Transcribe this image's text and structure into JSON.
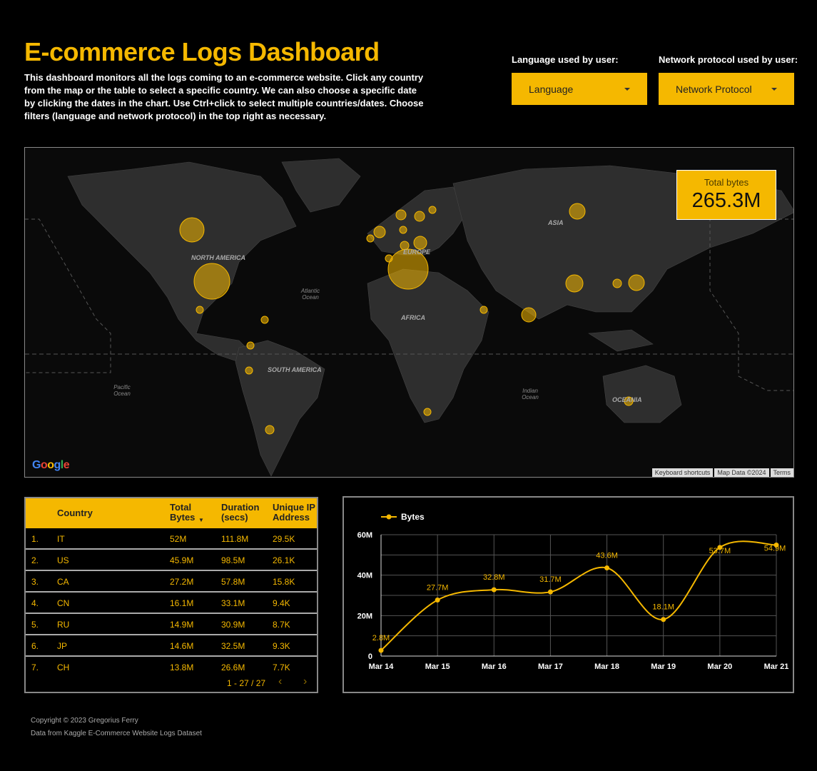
{
  "header": {
    "title": "E-commerce Logs Dashboard",
    "description": "This dashboard monitors all the logs coming to an e-commerce website. Click any country from the map or the table to select a specific country. We can also choose a specific date by clicking the dates in the chart. Use Ctrl+click to select multiple countries/dates. Choose filters (language and network protocol) in the top right as necessary."
  },
  "filters": {
    "language_label": "Language used by user:",
    "language_value": "Language",
    "protocol_label": "Network protocol used by user:",
    "protocol_value": "Network Protocol"
  },
  "map": {
    "total_label": "Total bytes",
    "total_value": "265.3M",
    "google_logo": "Google",
    "footer": [
      "Keyboard shortcuts",
      "Map Data ©2024",
      "Terms"
    ],
    "labels": {
      "north_america": "NORTH AMERICA",
      "south_america": "SOUTH AMERICA",
      "europe": "EUROPE",
      "africa": "AFRICA",
      "asia": "ASIA",
      "oceania": "OCEANIA",
      "atlantic": "Atlantic Ocean",
      "pacific": "Pacific Ocean",
      "indian": "Indian Ocean"
    }
  },
  "table": {
    "headers": {
      "country": "Country",
      "total_bytes": "Total Bytes",
      "duration": "Duration (secs)",
      "unique_ip": "Unique IP Address"
    },
    "rows": [
      {
        "index": "1.",
        "country": "IT",
        "bytes": "52M",
        "duration": "111.8M",
        "ip": "29.5K"
      },
      {
        "index": "2.",
        "country": "US",
        "bytes": "45.9M",
        "duration": "98.5M",
        "ip": "26.1K"
      },
      {
        "index": "3.",
        "country": "CA",
        "bytes": "27.2M",
        "duration": "57.8M",
        "ip": "15.8K"
      },
      {
        "index": "4.",
        "country": "CN",
        "bytes": "16.1M",
        "duration": "33.1M",
        "ip": "9.4K"
      },
      {
        "index": "5.",
        "country": "RU",
        "bytes": "14.9M",
        "duration": "30.9M",
        "ip": "8.7K"
      },
      {
        "index": "6.",
        "country": "JP",
        "bytes": "14.6M",
        "duration": "32.5M",
        "ip": "9.3K"
      },
      {
        "index": "7.",
        "country": "CH",
        "bytes": "13.8M",
        "duration": "26.6M",
        "ip": "7.7K"
      }
    ],
    "pager": "1 - 27 / 27",
    "prev_icon": "‹",
    "next_icon": "›"
  },
  "chart_data": {
    "type": "line",
    "legend": "Bytes",
    "x": [
      "Mar 14",
      "Mar 15",
      "Mar 16",
      "Mar 17",
      "Mar 18",
      "Mar 19",
      "Mar 20",
      "Mar 21"
    ],
    "series": [
      {
        "name": "Bytes",
        "values": [
          2.8,
          27.7,
          32.8,
          31.7,
          43.6,
          18.1,
          53.7,
          54.9
        ],
        "labels": [
          "2.8M",
          "27.7M",
          "32.8M",
          "31.7M",
          "43.6M",
          "18.1M",
          "53.7M",
          "54.9M"
        ]
      }
    ],
    "ylim": [
      0,
      60
    ],
    "yticks": [
      0,
      20,
      40,
      60
    ],
    "ytick_labels": [
      "0",
      "20M",
      "40M",
      "60M"
    ],
    "grid": true,
    "legend_position": "top-left",
    "color": "#f5b800"
  },
  "footer": {
    "copyright": "Copyright © 2023 Gregorius Ferry",
    "source": "Data from Kaggle E-Commerce Website Logs Dataset"
  },
  "colors": {
    "accent": "#f5b800",
    "background": "#000000",
    "land": "#2e2e2e"
  }
}
